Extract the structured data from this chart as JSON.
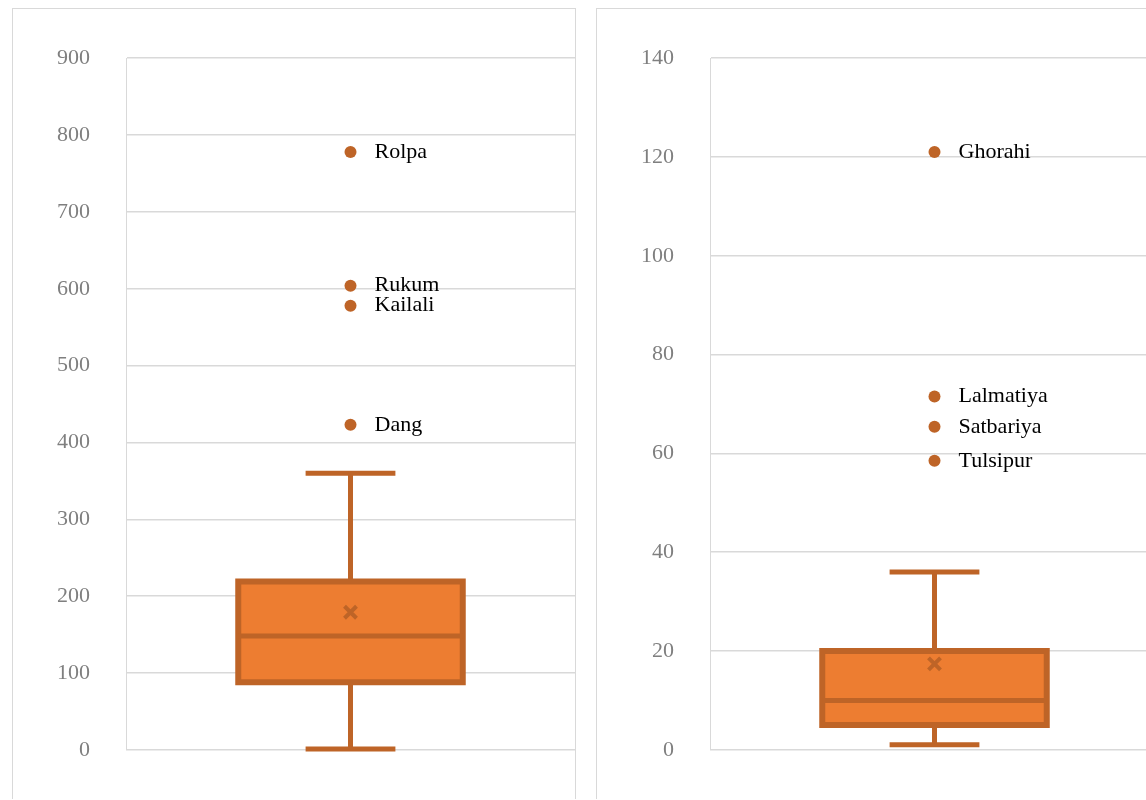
{
  "chart_data": [
    {
      "type": "box",
      "categories": [
        null
      ],
      "ylim": [
        0,
        900
      ],
      "yticks": [
        0,
        100,
        200,
        300,
        400,
        500,
        600,
        700,
        800,
        900
      ],
      "grid": "y",
      "series": [
        {
          "color": "#ed7d31",
          "boxes": [
            {
              "low": 1,
              "q1": 88,
              "median": 148,
              "q3": 219,
              "high": 360,
              "mean": 179,
              "outliers": [
                778,
                604,
                578,
                423
              ]
            }
          ]
        }
      ],
      "annotations": [
        "Rolpa",
        "Rukum",
        "Kailali",
        "Dang"
      ]
    },
    {
      "type": "box",
      "categories": [
        null
      ],
      "ylim": [
        0,
        140
      ],
      "yticks": [
        0,
        20,
        40,
        60,
        80,
        100,
        120,
        140
      ],
      "grid": "y",
      "series": [
        {
          "color": "#ed7d31",
          "boxes": [
            {
              "low": 1,
              "q1": 5,
              "median": 10,
              "q3": 20,
              "high": 36,
              "mean": 17.4,
              "outliers": [
                121,
                71.5,
                65.4,
                58.5
              ]
            }
          ]
        }
      ],
      "annotations": [
        "Ghorahi",
        "Lalmatiya",
        "Satbariya",
        "Tulsipur"
      ]
    }
  ]
}
